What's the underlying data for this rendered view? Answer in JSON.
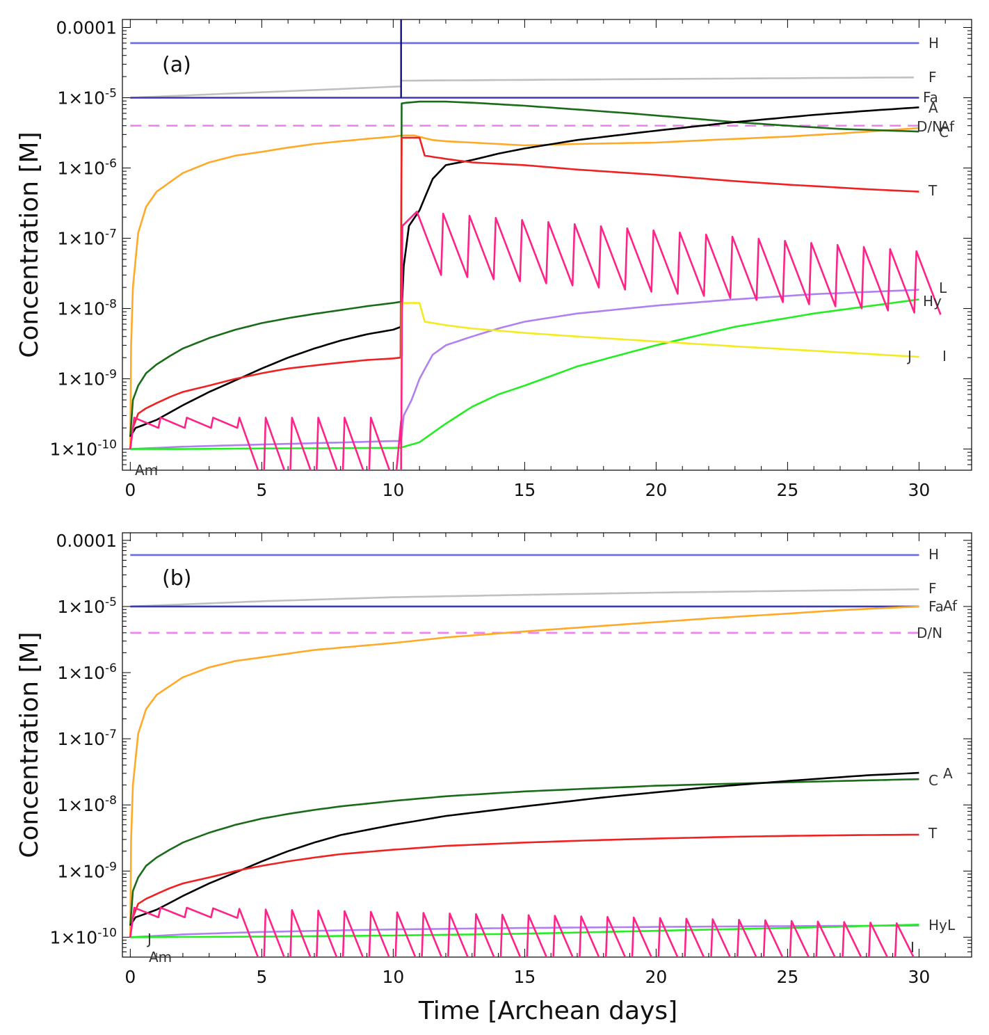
{
  "chart_data": [
    {
      "type": "line",
      "panel_label": "(a)",
      "ylabel": "Concentration [M]",
      "yscale": "log",
      "ylim": [
        5e-11,
        0.00013
      ],
      "xlim": [
        -0.3,
        32
      ],
      "y_ticks": [
        0.0001,
        1e-05,
        1e-06,
        1e-07,
        1e-08,
        1e-09,
        1e-10
      ],
      "y_tick_labels": [
        "0.0001",
        "1×10-5",
        "1×10-6",
        "1×10-7",
        "1×10-8",
        "1×10-9",
        "1×10-10"
      ],
      "x_ticks": [
        0,
        5,
        10,
        15,
        20,
        25,
        30
      ],
      "x_tick_labels": [
        "0",
        "5",
        "10",
        "15",
        "20",
        "25",
        "30"
      ],
      "event_day": 10.3,
      "series": [
        {
          "name": "H",
          "color": "#6b6bea",
          "kind": "const",
          "value": 6e-05
        },
        {
          "name": "F",
          "color": "#c0c0c0",
          "kind": "jumplog",
          "start": 1e-05,
          "pre": 1.45e-05,
          "post": 1.75e-05,
          "end": 1.95e-05
        },
        {
          "name": "Fa",
          "color": "#3b3bb0",
          "kind": "const",
          "value": 1e-05
        },
        {
          "name": "D/N",
          "color": "#ee82ee",
          "kind": "const",
          "value": 4e-06,
          "dashed": true
        },
        {
          "name": "Af",
          "color": "#ffa928",
          "x": [
            0,
            0.03,
            0.1,
            0.3,
            0.6,
            1,
            2,
            3,
            4,
            5,
            6,
            7,
            8,
            9,
            10,
            10.3,
            10.8,
            11.5,
            12,
            13,
            14,
            15,
            17,
            20,
            22,
            25,
            27,
            30
          ],
          "y": [
            1e-10,
            3e-09,
            2e-08,
            1.2e-07,
            2.8e-07,
            4.6e-07,
            8.5e-07,
            1.2e-06,
            1.5e-06,
            1.7e-06,
            1.95e-06,
            2.2e-06,
            2.4e-06,
            2.6e-06,
            2.8e-06,
            2.9e-06,
            2.9e-06,
            2.5e-06,
            2.4e-06,
            2.3e-06,
            2.2e-06,
            2.1e-06,
            2.2e-06,
            2.3e-06,
            2.5e-06,
            2.8e-06,
            3.1e-06,
            3.7e-06
          ]
        },
        {
          "name": "C",
          "color": "#1a6b1a",
          "x": [
            0,
            0.1,
            0.3,
            0.6,
            1,
            1.5,
            2,
            3,
            4,
            5,
            6,
            7,
            8,
            9,
            10,
            10.3,
            10.32,
            10.5,
            11,
            12,
            13,
            15,
            17,
            19,
            21,
            23,
            25,
            27,
            30
          ],
          "y": [
            1.5e-10,
            5e-10,
            8e-10,
            1.2e-09,
            1.6e-09,
            2.1e-09,
            2.7e-09,
            3.8e-09,
            5e-09,
            6.2e-09,
            7.3e-09,
            8.4e-09,
            9.5e-09,
            1.08e-08,
            1.2e-08,
            1.25e-08,
            8.3e-06,
            8.5e-06,
            8.8e-06,
            8.8e-06,
            8.5e-06,
            7.7e-06,
            6.8e-06,
            6e-06,
            5.2e-06,
            4.5e-06,
            4e-06,
            3.6e-06,
            3.3e-06
          ]
        },
        {
          "name": "A",
          "color": "#000000",
          "x": [
            0,
            0.2,
            0.5,
            1,
            1.5,
            2,
            3,
            4,
            5,
            6,
            7,
            8,
            9,
            10,
            10.3,
            10.4,
            10.6,
            11,
            11.5,
            12,
            13,
            14,
            15,
            17,
            20,
            23,
            26,
            28,
            30
          ],
          "y": [
            1.5e-10,
            2e-10,
            2.2e-10,
            2.6e-10,
            3.3e-10,
            4.2e-10,
            6.5e-10,
            9.5e-10,
            1.4e-09,
            2e-09,
            2.7e-09,
            3.5e-09,
            4.3e-09,
            5e-09,
            5.5e-09,
            4e-08,
            1.5e-07,
            2.5e-07,
            7e-07,
            1.1e-06,
            1.3e-06,
            1.6e-06,
            1.9e-06,
            2.5e-06,
            3.4e-06,
            4.5e-06,
            5.7e-06,
            6.5e-06,
            7.3e-06
          ]
        },
        {
          "name": "T",
          "color": "#ee2222",
          "x": [
            0,
            0.1,
            0.3,
            0.6,
            1,
            1.5,
            2,
            3,
            4,
            5,
            6,
            7,
            8,
            9,
            10,
            10.28,
            10.32,
            11,
            11.2,
            12,
            13,
            15,
            17,
            20,
            23,
            25,
            28,
            30
          ],
          "y": [
            1e-10,
            2e-10,
            3.2e-10,
            3.8e-10,
            4.5e-10,
            5.5e-10,
            6.5e-10,
            8e-10,
            1e-09,
            1.2e-09,
            1.4e-09,
            1.55e-09,
            1.7e-09,
            1.85e-09,
            1.95e-09,
            2e-09,
            2.7e-06,
            2.7e-06,
            1.5e-06,
            1.35e-06,
            1.2e-06,
            1.1e-06,
            9.5e-07,
            8e-07,
            6.5e-07,
            5.8e-07,
            5e-07,
            4.6e-07
          ]
        },
        {
          "name": "L",
          "color": "#b080f0",
          "x": [
            0,
            2,
            5,
            8,
            10,
            10.3,
            10.4,
            10.7,
            11,
            11.5,
            12,
            13,
            14,
            15,
            17,
            20,
            23,
            26,
            30
          ],
          "y": [
            1e-10,
            1.08e-10,
            1.16e-10,
            1.24e-10,
            1.3e-10,
            1.3e-10,
            3e-10,
            5e-10,
            1e-09,
            2.2e-09,
            3e-09,
            4e-09,
            5.2e-09,
            6.5e-09,
            8.5e-09,
            1.1e-08,
            1.35e-08,
            1.6e-08,
            1.85e-08
          ]
        },
        {
          "name": "Hy",
          "color": "#22ee22",
          "x": [
            0,
            2,
            5,
            8,
            10,
            10.3,
            11,
            12,
            13,
            14,
            15,
            17,
            20,
            23,
            26,
            30
          ],
          "y": [
            1e-10,
            1e-10,
            1.02e-10,
            1.03e-10,
            1.04e-10,
            1.05e-10,
            1.25e-10,
            2.3e-10,
            4e-10,
            6e-10,
            8e-10,
            1.5e-09,
            3e-09,
            5.5e-09,
            8.5e-09,
            1.35e-08
          ]
        },
        {
          "name": "J",
          "color": "#f4ea22",
          "x": [
            10.3,
            10.32,
            11,
            11.2,
            12,
            13,
            15,
            17,
            20,
            23,
            26,
            30
          ],
          "y": [
            5e-11,
            1.2e-08,
            1.2e-08,
            6.5e-09,
            5.8e-09,
            5.2e-09,
            4.5e-09,
            4e-09,
            3.4e-09,
            2.9e-09,
            2.5e-09,
            2.05e-09
          ]
        },
        {
          "name": "I",
          "color": "#ff2288",
          "kind": "saw",
          "pre_amp": 2.8e-10,
          "post_amp": 2.5e-07,
          "post_amp_end": 6.5e-08
        },
        {
          "name": "Am",
          "color": "#cc0000",
          "kind": "none"
        }
      ],
      "series_labels": [
        "H",
        "F",
        "Fa",
        "A",
        "D/N",
        "Af",
        "C",
        "T",
        "L",
        "Hy",
        "J",
        "I",
        "Am"
      ]
    },
    {
      "type": "line",
      "panel_label": "(b)",
      "xlabel": "Time [Archean days]",
      "ylabel": "Concentration [M]",
      "yscale": "log",
      "ylim": [
        5e-11,
        0.00013
      ],
      "xlim": [
        -0.3,
        32
      ],
      "y_ticks": [
        0.0001,
        1e-05,
        1e-06,
        1e-07,
        1e-08,
        1e-09,
        1e-10
      ],
      "y_tick_labels": [
        "0.0001",
        "1×10-5",
        "1×10-6",
        "1×10-7",
        "1×10-8",
        "1×10-9",
        "1×10-10"
      ],
      "x_ticks": [
        0,
        5,
        10,
        15,
        20,
        25,
        30
      ],
      "x_tick_labels": [
        "0",
        "5",
        "10",
        "15",
        "20",
        "25",
        "30"
      ],
      "series": [
        {
          "name": "H",
          "color": "#6b6bea",
          "kind": "const",
          "value": 6e-05
        },
        {
          "name": "F",
          "color": "#c0c0c0",
          "x": [
            0,
            5,
            10,
            15,
            20,
            25,
            30
          ],
          "y": [
            1e-05,
            1.2e-05,
            1.38e-05,
            1.5e-05,
            1.62e-05,
            1.72e-05,
            1.82e-05
          ]
        },
        {
          "name": "Fa",
          "color": "#3b3bb0",
          "kind": "const",
          "value": 1e-05
        },
        {
          "name": "D/N",
          "color": "#ee82ee",
          "kind": "const",
          "value": 4e-06,
          "dashed": true
        },
        {
          "name": "Af",
          "color": "#ffa928",
          "x": [
            0,
            0.03,
            0.1,
            0.3,
            0.6,
            1,
            2,
            3,
            4,
            5,
            7,
            10,
            12,
            15,
            18,
            20,
            22,
            25,
            27,
            30
          ],
          "y": [
            1e-10,
            3e-09,
            2e-08,
            1.2e-07,
            2.8e-07,
            4.6e-07,
            8.5e-07,
            1.2e-06,
            1.5e-06,
            1.7e-06,
            2.2e-06,
            2.8e-06,
            3.4e-06,
            4.2e-06,
            5.1e-06,
            5.8e-06,
            6.6e-06,
            7.8e-06,
            8.8e-06,
            1e-05
          ]
        },
        {
          "name": "C",
          "color": "#1a6b1a",
          "x": [
            0,
            0.1,
            0.3,
            0.6,
            1,
            1.5,
            2,
            3,
            4,
            5,
            6,
            7,
            8,
            10,
            12,
            15,
            18,
            20,
            23,
            25,
            28,
            30
          ],
          "y": [
            1.5e-10,
            5e-10,
            8e-10,
            1.2e-09,
            1.6e-09,
            2.1e-09,
            2.7e-09,
            3.8e-09,
            5e-09,
            6.2e-09,
            7.3e-09,
            8.4e-09,
            9.5e-09,
            1.15e-08,
            1.35e-08,
            1.6e-08,
            1.8e-08,
            1.95e-08,
            2.1e-08,
            2.2e-08,
            2.35e-08,
            2.45e-08
          ]
        },
        {
          "name": "A",
          "color": "#000000",
          "x": [
            0,
            0.2,
            0.5,
            1,
            1.5,
            2,
            3,
            4,
            5,
            6,
            7,
            8,
            10,
            12,
            15,
            18,
            20,
            22,
            25,
            28,
            30
          ],
          "y": [
            1.5e-10,
            2e-10,
            2.2e-10,
            2.6e-10,
            3.3e-10,
            4.2e-10,
            6.5e-10,
            9.5e-10,
            1.4e-09,
            2e-09,
            2.7e-09,
            3.5e-09,
            5e-09,
            6.8e-09,
            9.5e-09,
            1.3e-08,
            1.55e-08,
            1.85e-08,
            2.3e-08,
            2.8e-08,
            3.05e-08
          ]
        },
        {
          "name": "T",
          "color": "#ee2222",
          "x": [
            0,
            0.1,
            0.3,
            0.6,
            1,
            1.5,
            2,
            3,
            4,
            5,
            6,
            7,
            8,
            10,
            12,
            15,
            18,
            20,
            23,
            25,
            28,
            30
          ],
          "y": [
            1e-10,
            2e-10,
            3.2e-10,
            3.8e-10,
            4.5e-10,
            5.5e-10,
            6.5e-10,
            8e-10,
            1e-09,
            1.2e-09,
            1.4e-09,
            1.6e-09,
            1.8e-09,
            2.1e-09,
            2.4e-09,
            2.7e-09,
            2.95e-09,
            3.1e-09,
            3.3e-09,
            3.4e-09,
            3.5e-09,
            3.55e-09
          ]
        },
        {
          "name": "L",
          "color": "#b080f0",
          "x": [
            0,
            2,
            5,
            8,
            10,
            15,
            20,
            25,
            30
          ],
          "y": [
            1e-10,
            1.1e-10,
            1.2e-10,
            1.27e-10,
            1.31e-10,
            1.38e-10,
            1.43e-10,
            1.47e-10,
            1.5e-10
          ]
        },
        {
          "name": "Hy",
          "color": "#22ee22",
          "x": [
            0,
            5,
            10,
            15,
            20,
            25,
            30
          ],
          "y": [
            1e-10,
            1.02e-10,
            1.06e-10,
            1.13e-10,
            1.25e-10,
            1.38e-10,
            1.55e-10
          ]
        },
        {
          "name": "I",
          "color": "#ff2288",
          "kind": "saw",
          "pre_amp": 2.8e-10,
          "post_amp": 2.2e-10,
          "post_amp_end": 1.6e-10
        },
        {
          "name": "J",
          "color": "#f4ea22",
          "kind": "none"
        },
        {
          "name": "Am",
          "color": "#cc0000",
          "kind": "none"
        }
      ],
      "series_labels": [
        "H",
        "F",
        "Fa",
        "Af",
        "D/N",
        "C",
        "A",
        "T",
        "Hy",
        "L",
        "I",
        "J",
        "Am"
      ]
    }
  ]
}
